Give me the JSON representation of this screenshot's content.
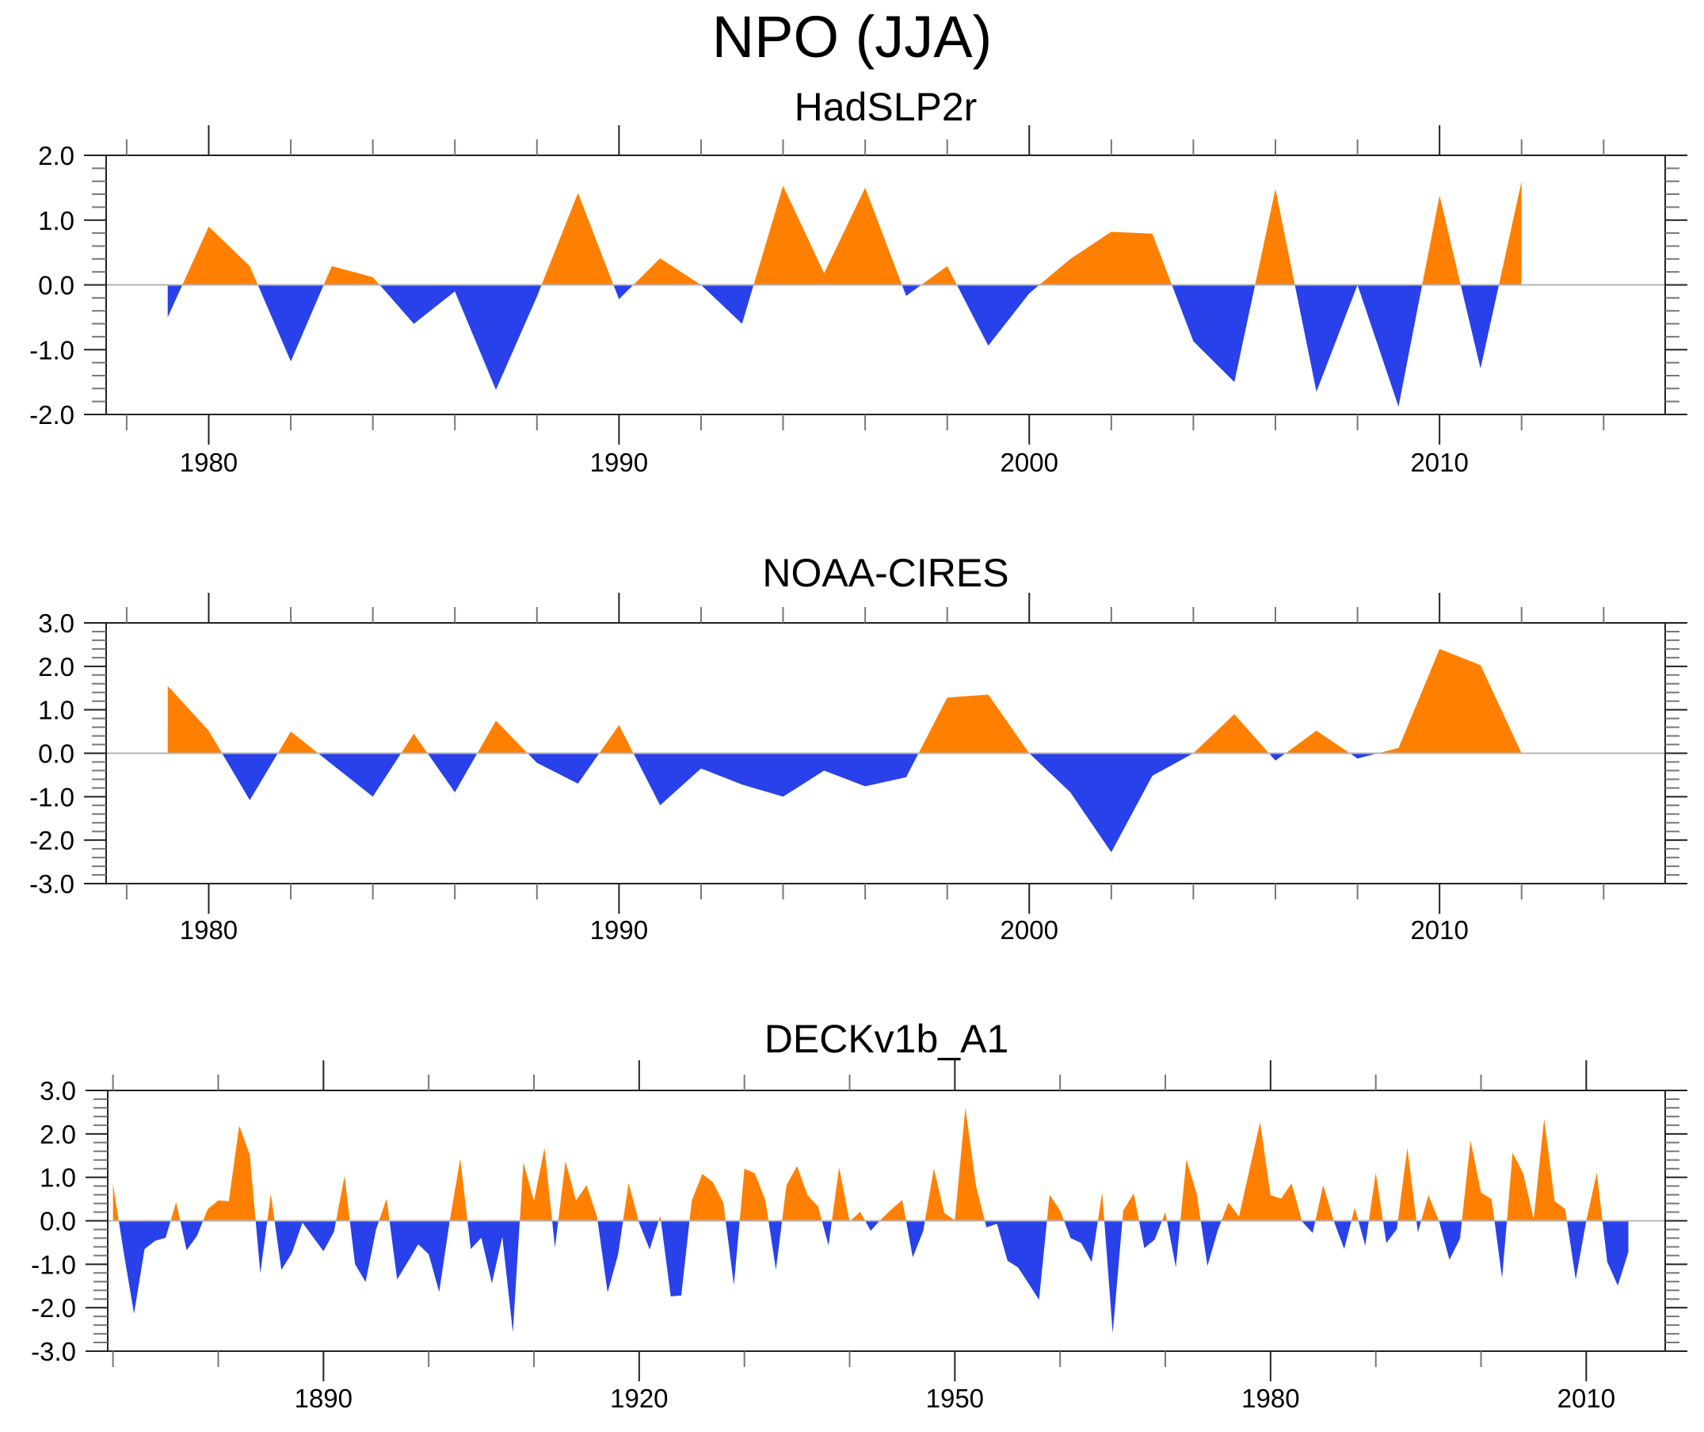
{
  "figure": {
    "title": "NPO (JJA)",
    "colors": {
      "positive": "#ff8000",
      "negative": "#2841eb",
      "axis": "#000000",
      "zero_line": "#b4b4b4"
    }
  },
  "chart_data": [
    {
      "type": "area",
      "title": "HadSLP2r",
      "xlabel": "",
      "ylabel": "",
      "xlim": [
        1977.5,
        2015.5
      ],
      "ylim": [
        -2.0,
        2.0
      ],
      "x_ticks_major": [
        1980,
        1990,
        2000,
        2010
      ],
      "x_tick_labels": [
        "1980",
        "1990",
        "2000",
        "2010"
      ],
      "x_minor_step": 2,
      "y_ticks": [
        2.0,
        1.0,
        0.0,
        -1.0,
        -2.0
      ],
      "y_tick_labels": [
        "2.0",
        "1.0",
        "0.0",
        "-1.0",
        "-2.0"
      ],
      "y_minor_step": 0.2,
      "grid": false,
      "fill": "positive orange above zero, negative blue below zero",
      "x": [
        1979,
        1980,
        1981,
        1982,
        1983,
        1984,
        1985,
        1986,
        1987,
        1988,
        1989,
        1990,
        1991,
        1992,
        1993,
        1994,
        1995,
        1996,
        1997,
        1998,
        1999,
        2000,
        2001,
        2002,
        2003,
        2004,
        2005,
        2006,
        2007,
        2008,
        2009,
        2010,
        2011,
        2012
      ],
      "values": [
        -0.5,
        0.9,
        0.29,
        -1.18,
        0.29,
        0.12,
        -0.6,
        -0.1,
        -1.62,
        -0.18,
        1.42,
        -0.22,
        0.41,
        0.0,
        -0.6,
        1.53,
        0.18,
        1.5,
        -0.17,
        0.29,
        -0.94,
        -0.13,
        0.4,
        0.82,
        0.79,
        -0.87,
        -1.5,
        1.48,
        -1.65,
        0.0,
        -1.88,
        1.38,
        -1.29,
        1.6
      ]
    },
    {
      "type": "area",
      "title": "NOAA-CIRES",
      "xlabel": "",
      "ylabel": "",
      "xlim": [
        1977.5,
        2015.5
      ],
      "ylim": [
        -3.0,
        3.0
      ],
      "x_ticks_major": [
        1980,
        1990,
        2000,
        2010
      ],
      "x_tick_labels": [
        "1980",
        "1990",
        "2000",
        "2010"
      ],
      "x_minor_step": 2,
      "y_ticks": [
        3.0,
        2.0,
        1.0,
        0.0,
        -1.0,
        -2.0,
        -3.0
      ],
      "y_tick_labels": [
        "3.0",
        "2.0",
        "1.0",
        "0.0",
        "-1.0",
        "-2.0",
        "-3.0"
      ],
      "y_minor_step": 0.2,
      "grid": false,
      "fill": "positive orange above zero, negative blue below zero",
      "x": [
        1979,
        1980,
        1981,
        1982,
        1983,
        1984,
        1985,
        1986,
        1987,
        1988,
        1989,
        1990,
        1991,
        1992,
        1993,
        1994,
        1995,
        1996,
        1997,
        1998,
        1999,
        2000,
        2001,
        2002,
        2003,
        2004,
        2005,
        2006,
        2007,
        2008,
        2009,
        2010,
        2011,
        2012
      ],
      "values": [
        1.55,
        0.52,
        -1.08,
        0.5,
        -0.25,
        -1.0,
        0.45,
        -0.9,
        0.75,
        -0.22,
        -0.7,
        0.65,
        -1.2,
        -0.35,
        -0.72,
        -1.0,
        -0.4,
        -0.76,
        -0.55,
        1.28,
        1.35,
        0.0,
        -0.9,
        -2.28,
        -0.52,
        0.0,
        0.9,
        -0.17,
        0.52,
        -0.12,
        0.12,
        2.4,
        2.03,
        0.0
      ]
    },
    {
      "type": "area",
      "title": "DECKv1b_A1",
      "xlabel": "",
      "ylabel": "",
      "xlim": [
        1869.5,
        2017.5
      ],
      "ylim": [
        -3.0,
        3.0
      ],
      "x_ticks_major": [
        1890,
        1920,
        1950,
        1980,
        2010
      ],
      "x_tick_labels": [
        "1890",
        "1920",
        "1950",
        "1980",
        "2010"
      ],
      "x_minor_step": 10,
      "y_ticks": [
        3.0,
        2.0,
        1.0,
        0.0,
        -1.0,
        -2.0,
        -3.0
      ],
      "y_tick_labels": [
        "3.0",
        "2.0",
        "1.0",
        "0.0",
        "-1.0",
        "-2.0",
        "-3.0"
      ],
      "y_minor_step": 0.2,
      "grid": false,
      "fill": "positive orange above zero, negative blue below zero",
      "x_start": 1870,
      "x_end": 2014,
      "values": [
        0.85,
        -0.7,
        -2.14,
        -0.65,
        -0.46,
        -0.39,
        0.43,
        -0.68,
        -0.34,
        0.27,
        0.47,
        0.45,
        2.19,
        1.52,
        -1.21,
        0.62,
        -1.13,
        -0.74,
        -0.04,
        -0.37,
        -0.7,
        -0.25,
        1.03,
        -1.0,
        -1.41,
        -0.2,
        0.51,
        -1.35,
        -0.95,
        -0.54,
        -0.77,
        -1.64,
        0.0,
        1.43,
        -0.65,
        -0.39,
        -1.44,
        -0.37,
        -2.57,
        1.35,
        0.45,
        1.68,
        -0.62,
        1.37,
        0.47,
        0.82,
        0.09,
        -1.65,
        -0.77,
        0.87,
        -0.05,
        -0.66,
        0.12,
        -1.74,
        -1.72,
        0.47,
        1.08,
        0.89,
        0.42,
        -1.48,
        1.2,
        1.09,
        0.47,
        -1.13,
        0.82,
        1.26,
        0.59,
        0.33,
        -0.57,
        1.23,
        -0.02,
        0.21,
        -0.23,
        0.04,
        0.27,
        0.48,
        -0.84,
        -0.23,
        1.2,
        0.18,
        0.01,
        2.6,
        0.82,
        -0.15,
        -0.07,
        -0.92,
        -1.07,
        -1.44,
        -1.82,
        0.6,
        0.24,
        -0.4,
        -0.51,
        -0.95,
        0.66,
        -2.59,
        0.24,
        0.63,
        -0.63,
        -0.43,
        0.2,
        -1.07,
        1.41,
        0.6,
        -1.04,
        -0.21,
        0.42,
        0.1,
        1.18,
        2.27,
        0.59,
        0.51,
        0.86,
        -0.02,
        -0.28,
        0.82,
        0.0,
        -0.65,
        0.3,
        -0.57,
        1.11,
        -0.51,
        -0.19,
        1.68,
        -0.27,
        0.59,
        0.0,
        -0.9,
        -0.41,
        1.85,
        0.65,
        0.5,
        -1.32,
        1.57,
        1.09,
        0.04,
        2.35,
        0.45,
        0.27,
        -1.35,
        0.0,
        1.11,
        -0.95,
        -1.49,
        -0.72
      ]
    }
  ]
}
